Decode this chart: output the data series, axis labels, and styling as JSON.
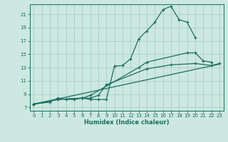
{
  "xlabel": "Humidex (Indice chaleur)",
  "bg_color": "#cce8e0",
  "grid_color": "#aacfc8",
  "line_color": "#1a6e60",
  "xlim": [
    -0.5,
    23.5
  ],
  "ylim": [
    6.5,
    22.5
  ],
  "yticks": [
    7,
    9,
    11,
    13,
    15,
    17,
    19,
    21
  ],
  "xticks": [
    0,
    1,
    2,
    3,
    4,
    5,
    6,
    7,
    8,
    9,
    10,
    11,
    12,
    13,
    14,
    15,
    16,
    17,
    18,
    19,
    20,
    21,
    22,
    23
  ],
  "line1_x": [
    0,
    2,
    3,
    4,
    5,
    6,
    7,
    8,
    9,
    10,
    11,
    12,
    13,
    14,
    15,
    16,
    17,
    18,
    19,
    20
  ],
  "line1_y": [
    7.5,
    7.8,
    8.4,
    8.2,
    8.2,
    8.4,
    8.2,
    8.2,
    8.2,
    13.2,
    13.3,
    14.3,
    17.3,
    18.5,
    19.8,
    21.7,
    22.2,
    20.2,
    19.8,
    17.5
  ],
  "line2_x": [
    0,
    3,
    6,
    7,
    13,
    14,
    19,
    20,
    21,
    22
  ],
  "line2_y": [
    7.5,
    8.2,
    8.4,
    8.8,
    13.0,
    13.8,
    15.2,
    15.2,
    14.0,
    13.8
  ],
  "line3_x": [
    0,
    3,
    6,
    7,
    8,
    9,
    14,
    17,
    20,
    22,
    23
  ],
  "line3_y": [
    7.5,
    8.2,
    8.4,
    8.4,
    8.8,
    10.4,
    12.8,
    13.4,
    13.6,
    13.3,
    13.6
  ],
  "line4_x": [
    0,
    23
  ],
  "line4_y": [
    7.5,
    13.5
  ]
}
